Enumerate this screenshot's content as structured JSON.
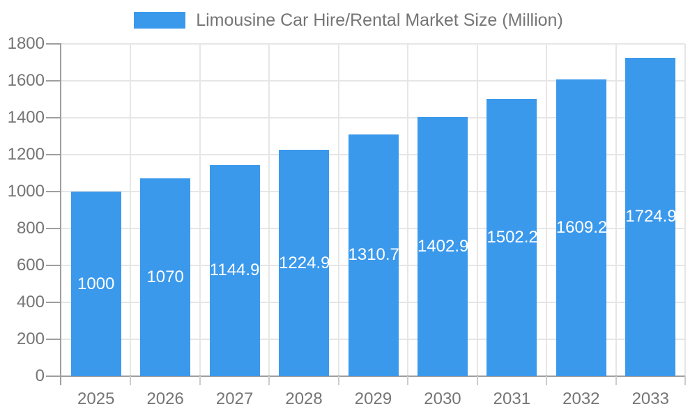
{
  "legend": {
    "label": "Limousine Car Hire/Rental Market Size (Million)"
  },
  "chart_data": {
    "type": "bar",
    "title": "Limousine Car Hire/Rental Market Size (Million)",
    "categories": [
      "2025",
      "2026",
      "2027",
      "2028",
      "2029",
      "2030",
      "2031",
      "2032",
      "2033"
    ],
    "series": [
      {
        "name": "Limousine Car Hire/Rental Market Size (Million)",
        "values": [
          1000,
          1070,
          1144.9,
          1224.97,
          1310.76,
          1402.96,
          1502.23,
          1609.28,
          1724.93
        ]
      }
    ],
    "xlabel": "",
    "ylabel": "",
    "ylim": [
      0,
      1800
    ],
    "y_ticks": [
      0,
      200,
      400,
      600,
      800,
      1000,
      1200,
      1400,
      1600,
      1800
    ],
    "grid": true,
    "legend_position": "top",
    "value_labels_inside_bars": true,
    "colors": {
      "bar": "#3B99EC",
      "grid": "#E6E6E6",
      "axis": "#9E9E9E",
      "minor_tick": "#CCCCCC",
      "text": "#757575",
      "value_label": "#FFFFFF",
      "background": "#FFFFFF"
    }
  }
}
